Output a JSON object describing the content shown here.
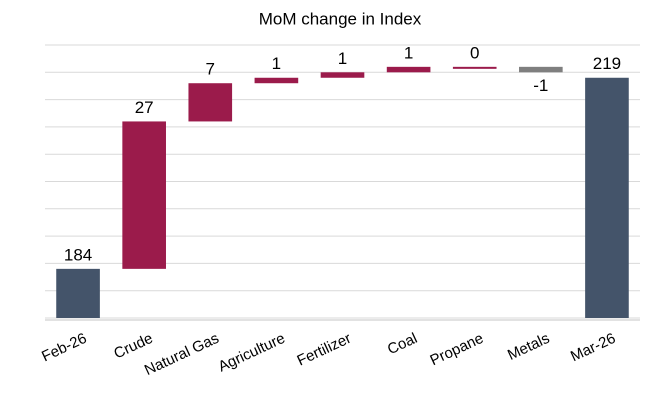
{
  "chart_data": {
    "type": "waterfall",
    "title": "MoM change in Index",
    "categories": [
      "Feb-26",
      "Crude",
      "Natural Gas",
      "Agriculture",
      "Fertilizer",
      "Coal",
      "Propane",
      "Metals",
      "Mar-26"
    ],
    "values": [
      184,
      27,
      7,
      1,
      1,
      1,
      0,
      -1,
      219
    ],
    "is_total": [
      true,
      false,
      false,
      false,
      false,
      false,
      false,
      false,
      true
    ],
    "total_color": "#44546a",
    "increase_color": "#9b1b4b",
    "decrease_color": "#7f7f7f",
    "ylim": [
      175,
      225
    ],
    "yticks": [
      175,
      180,
      185,
      190,
      195,
      200,
      205,
      210,
      215,
      220,
      225
    ],
    "grid": true
  }
}
